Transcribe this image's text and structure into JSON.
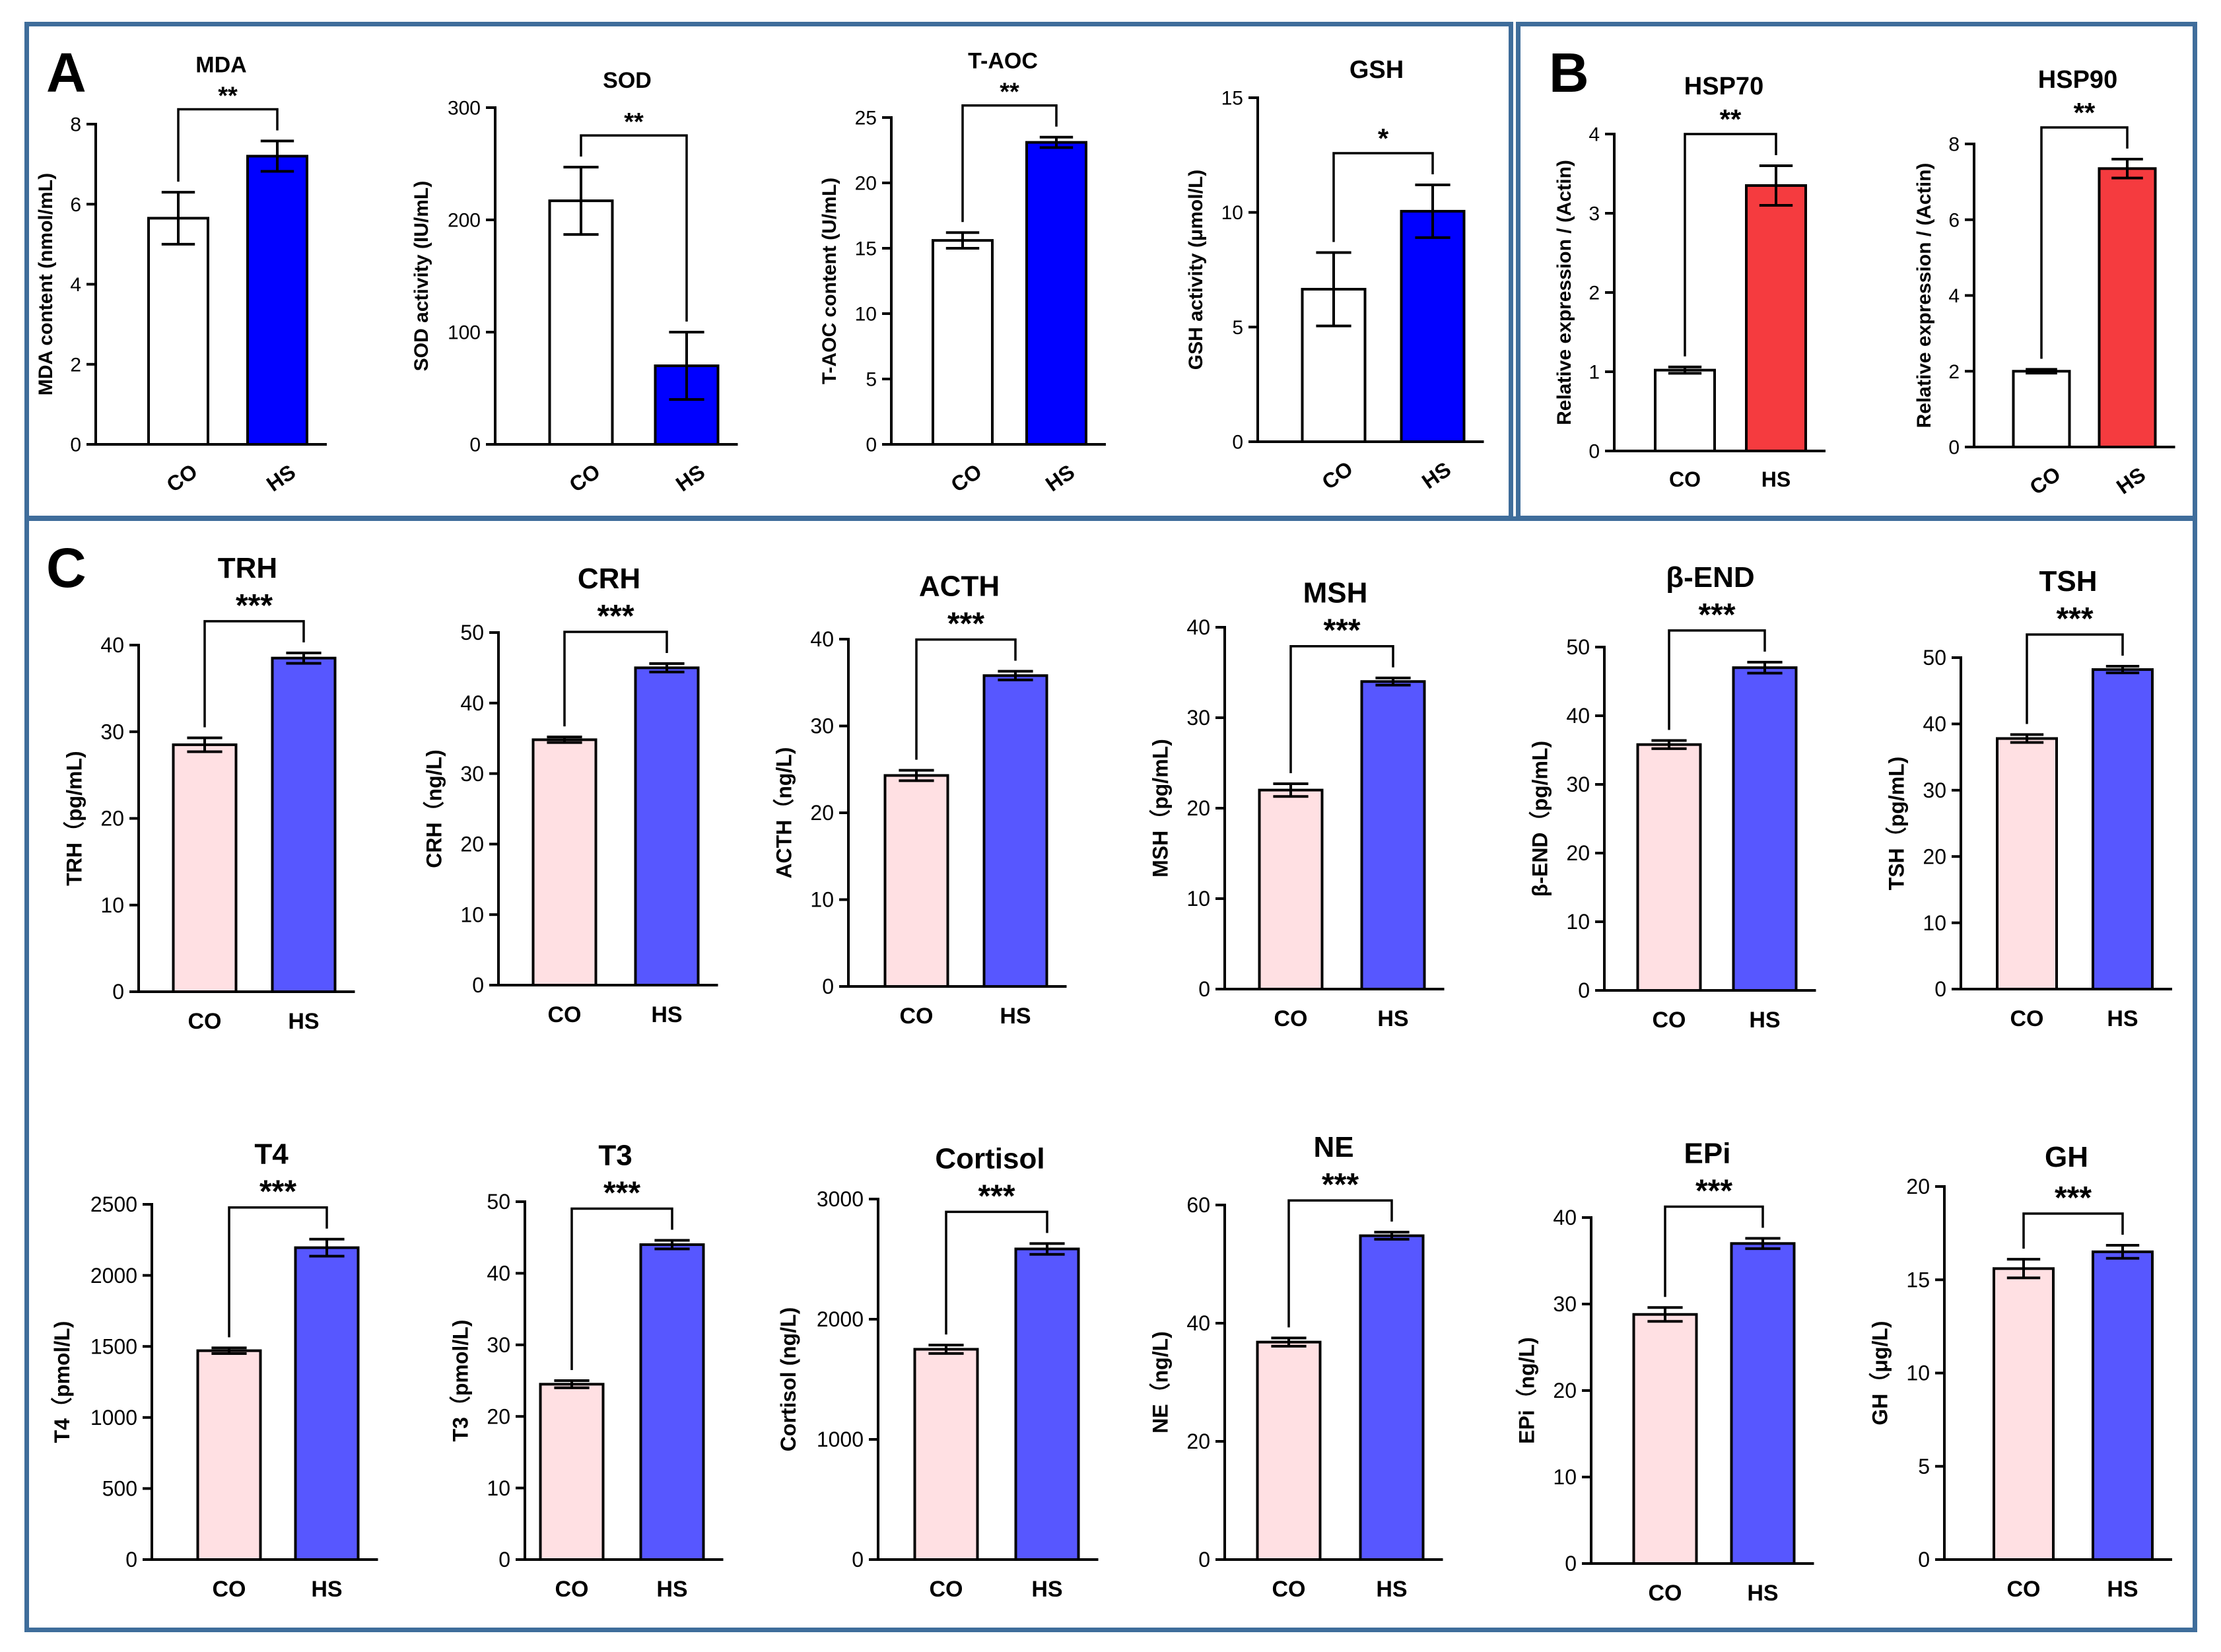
{
  "panel_letters": {
    "a": "A",
    "b": "B",
    "c": "C"
  },
  "colors": {
    "co_white": "#ffffff",
    "co_pink": "#ffe0e3",
    "hs_blue": "#0000ff",
    "hs_blue_light": "#5757ff",
    "hs_red": "#f53b3f",
    "frame": "#3f6d9b"
  },
  "chart_data": [
    {
      "id": "mda",
      "type": "bar",
      "title": "MDA",
      "ylabel": "MDA content (nmol/mL)",
      "categories": [
        "CO",
        "HS"
      ],
      "values": [
        5.65,
        7.2
      ],
      "errors": [
        0.65,
        0.38
      ],
      "ylim": [
        0,
        8
      ],
      "yticks": [
        "0",
        "2",
        "4",
        "6",
        "8"
      ],
      "sig": "**",
      "colors": [
        "#ffffff",
        "#0000ff"
      ]
    },
    {
      "id": "sod",
      "type": "bar",
      "title": "SOD",
      "ylabel": "SOD activity (IU/mL)",
      "categories": [
        "CO",
        "HS"
      ],
      "values": [
        217,
        70
      ],
      "errors": [
        30,
        30
      ],
      "ylim": [
        0,
        300
      ],
      "yticks": [
        "0",
        "100",
        "200",
        "300"
      ],
      "sig": "**",
      "colors": [
        "#ffffff",
        "#0000ff"
      ]
    },
    {
      "id": "taoc",
      "type": "bar",
      "title": "T-AOC",
      "ylabel": "T-AOC content (U/mL)",
      "categories": [
        "CO",
        "HS"
      ],
      "values": [
        15.6,
        23.1
      ],
      "errors": [
        0.6,
        0.4
      ],
      "ylim": [
        0,
        25
      ],
      "yticks": [
        "0",
        "5",
        "10",
        "15",
        "20",
        "25"
      ],
      "sig": "**",
      "colors": [
        "#ffffff",
        "#0000ff"
      ]
    },
    {
      "id": "gsh",
      "type": "bar",
      "title": "GSH",
      "ylabel": "GSH activity (μmol/L)",
      "categories": [
        "CO",
        "HS"
      ],
      "values": [
        6.65,
        10.05
      ],
      "errors": [
        1.6,
        1.15
      ],
      "ylim": [
        0,
        15
      ],
      "yticks": [
        "0",
        "5",
        "10",
        "15"
      ],
      "sig": "*",
      "colors": [
        "#ffffff",
        "#0000ff"
      ]
    },
    {
      "id": "hsp70",
      "type": "bar",
      "title": "HSP70",
      "ylabel": "Relative expression / (Actin)",
      "categories": [
        "CO",
        "HS"
      ],
      "values": [
        1.02,
        3.35
      ],
      "errors": [
        0.04,
        0.25
      ],
      "ylim": [
        0,
        4
      ],
      "yticks": [
        "0",
        "1",
        "2",
        "3",
        "4"
      ],
      "sig": "**",
      "colors": [
        "#ffffff",
        "#f53b3f"
      ]
    },
    {
      "id": "hsp90",
      "type": "bar",
      "title": "HSP90",
      "ylabel": "Relative expression / (Actin)",
      "categories": [
        "CO",
        "HS"
      ],
      "values": [
        2.0,
        7.35
      ],
      "errors": [
        0.05,
        0.25
      ],
      "ylim": [
        0,
        8
      ],
      "yticks": [
        "0",
        "2",
        "4",
        "6",
        "8"
      ],
      "sig": "**",
      "colors": [
        "#ffffff",
        "#f53b3f"
      ]
    },
    {
      "id": "trh",
      "type": "bar",
      "title": "TRH",
      "ylabel": "TRH（pg/mL)",
      "categories": [
        "CO",
        "HS"
      ],
      "values": [
        28.5,
        38.5
      ],
      "errors": [
        0.8,
        0.6
      ],
      "ylim": [
        0,
        40
      ],
      "yticks": [
        "0",
        "10",
        "20",
        "30",
        "40"
      ],
      "sig": "***",
      "colors": [
        "#ffe0e3",
        "#5757ff"
      ]
    },
    {
      "id": "crh",
      "type": "bar",
      "title": "CRH",
      "ylabel": "CRH（ng/L)",
      "categories": [
        "CO",
        "HS"
      ],
      "values": [
        34.8,
        45.0
      ],
      "errors": [
        0.4,
        0.6
      ],
      "ylim": [
        0,
        50
      ],
      "yticks": [
        "0",
        "10",
        "20",
        "30",
        "40",
        "50"
      ],
      "sig": "***",
      "colors": [
        "#ffe0e3",
        "#5757ff"
      ]
    },
    {
      "id": "acth",
      "type": "bar",
      "title": "ACTH",
      "ylabel": "ACTH（ng/L)",
      "categories": [
        "CO",
        "HS"
      ],
      "values": [
        24.3,
        35.8
      ],
      "errors": [
        0.6,
        0.5
      ],
      "ylim": [
        0,
        40
      ],
      "yticks": [
        "0",
        "10",
        "20",
        "30",
        "40"
      ],
      "sig": "***",
      "colors": [
        "#ffe0e3",
        "#5757ff"
      ]
    },
    {
      "id": "msh",
      "type": "bar",
      "title": "MSH",
      "ylabel": "MSH（pg/mL)",
      "categories": [
        "CO",
        "HS"
      ],
      "values": [
        22.0,
        34.0
      ],
      "errors": [
        0.7,
        0.4
      ],
      "ylim": [
        0,
        40
      ],
      "yticks": [
        "0",
        "10",
        "20",
        "30",
        "40"
      ],
      "sig": "***",
      "colors": [
        "#ffe0e3",
        "#5757ff"
      ]
    },
    {
      "id": "bend",
      "type": "bar",
      "title": "β-END",
      "ylabel": "β-END（pg/mL)",
      "categories": [
        "CO",
        "HS"
      ],
      "values": [
        35.8,
        47.0
      ],
      "errors": [
        0.6,
        0.8
      ],
      "ylim": [
        0,
        50
      ],
      "yticks": [
        "0",
        "10",
        "20",
        "30",
        "40",
        "50"
      ],
      "sig": "***",
      "colors": [
        "#ffe0e3",
        "#5757ff"
      ]
    },
    {
      "id": "tsh",
      "type": "bar",
      "title": "TSH",
      "ylabel": "TSH（pg/mL)",
      "categories": [
        "CO",
        "HS"
      ],
      "values": [
        37.8,
        48.2
      ],
      "errors": [
        0.6,
        0.5
      ],
      "ylim": [
        0,
        50
      ],
      "yticks": [
        "0",
        "10",
        "20",
        "30",
        "40",
        "50"
      ],
      "sig": "***",
      "colors": [
        "#ffe0e3",
        "#5757ff"
      ]
    },
    {
      "id": "t4",
      "type": "bar",
      "title": "T4",
      "ylabel": "T4（pmol/L)",
      "categories": [
        "CO",
        "HS"
      ],
      "values": [
        1470,
        2195
      ],
      "errors": [
        20,
        60
      ],
      "ylim": [
        0,
        2500
      ],
      "yticks": [
        "0",
        "500",
        "1000",
        "1500",
        "2000",
        "2500"
      ],
      "sig": "***",
      "colors": [
        "#ffe0e3",
        "#5757ff"
      ]
    },
    {
      "id": "t3",
      "type": "bar",
      "title": "T3",
      "ylabel": "T3（pmol/L)",
      "categories": [
        "CO",
        "HS"
      ],
      "values": [
        24.5,
        44.0
      ],
      "errors": [
        0.5,
        0.6
      ],
      "ylim": [
        0,
        50
      ],
      "yticks": [
        "0",
        "10",
        "20",
        "30",
        "40",
        "50"
      ],
      "sig": "***",
      "colors": [
        "#ffe0e3",
        "#5757ff"
      ]
    },
    {
      "id": "cortisol",
      "type": "bar",
      "title": "Cortisol",
      "ylabel": "Cortisol (ng/L)",
      "categories": [
        "CO",
        "HS"
      ],
      "values": [
        1750,
        2585
      ],
      "errors": [
        35,
        45
      ],
      "ylim": [
        0,
        3000
      ],
      "yticks": [
        "0",
        "1000",
        "2000",
        "3000"
      ],
      "sig": "***",
      "colors": [
        "#ffe0e3",
        "#5757ff"
      ]
    },
    {
      "id": "ne",
      "type": "bar",
      "title": "NE",
      "ylabel": "NE（ng/L)",
      "categories": [
        "CO",
        "HS"
      ],
      "values": [
        36.8,
        54.8
      ],
      "errors": [
        0.7,
        0.6
      ],
      "ylim": [
        0,
        60
      ],
      "yticks": [
        "0",
        "20",
        "40",
        "60"
      ],
      "sig": "***",
      "colors": [
        "#ffe0e3",
        "#5757ff"
      ]
    },
    {
      "id": "epi",
      "type": "bar",
      "title": "EPi",
      "ylabel": "EPi（ng/L)",
      "categories": [
        "CO",
        "HS"
      ],
      "values": [
        28.8,
        37.0
      ],
      "errors": [
        0.8,
        0.6
      ],
      "ylim": [
        0,
        40
      ],
      "yticks": [
        "0",
        "10",
        "20",
        "30",
        "40"
      ],
      "sig": "***",
      "colors": [
        "#ffe0e3",
        "#5757ff"
      ]
    },
    {
      "id": "gh",
      "type": "bar",
      "title": "GH",
      "ylabel": "GH（μg/L)",
      "categories": [
        "CO",
        "HS"
      ],
      "values": [
        15.6,
        16.5
      ],
      "errors": [
        0.5,
        0.35
      ],
      "ylim": [
        0,
        20
      ],
      "yticks": [
        "0",
        "5",
        "10",
        "15",
        "20"
      ],
      "sig": "***",
      "colors": [
        "#ffe0e3",
        "#5757ff"
      ]
    }
  ]
}
